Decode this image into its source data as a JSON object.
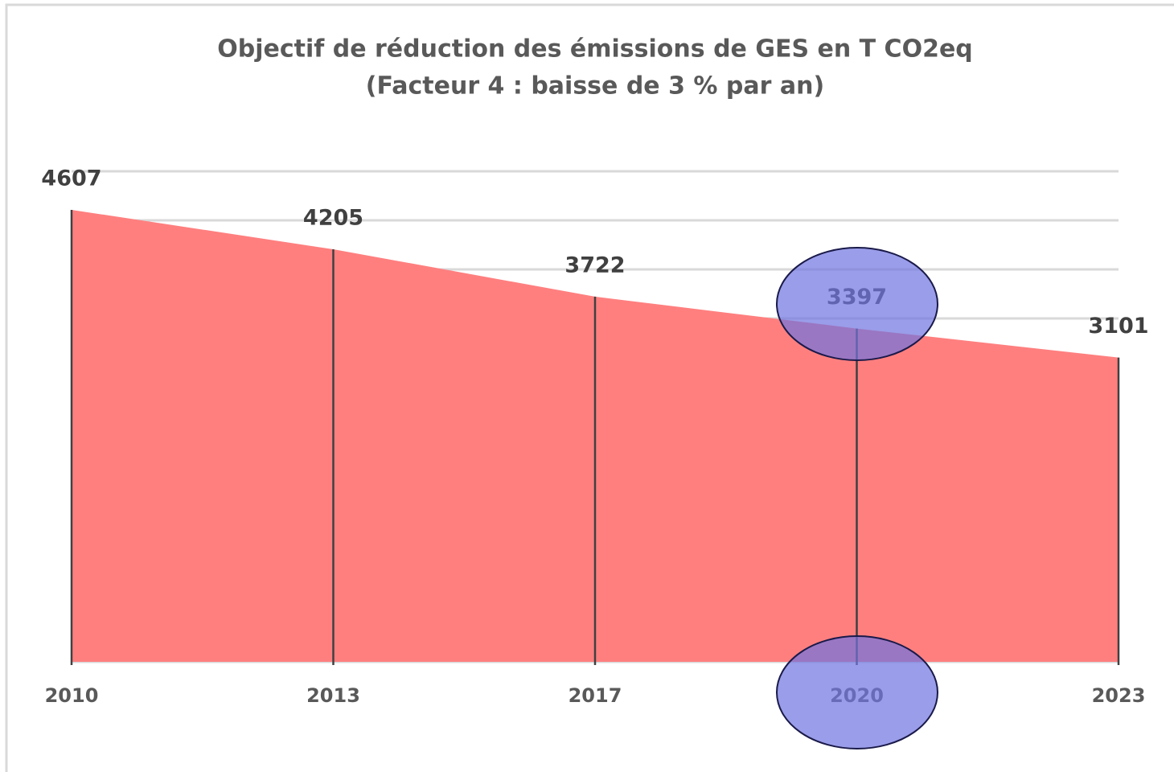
{
  "chart_data": {
    "type": "area",
    "title": "Objectif de réduction des émissions de GES en T CO2eq",
    "subtitle": "(Facteur 4 : baisse de 3 % par an)",
    "categories": [
      "2010",
      "2013",
      "2017",
      "2020",
      "2023"
    ],
    "values": [
      4607,
      4205,
      3722,
      3397,
      3101
    ],
    "color": "#ff7f7f",
    "ylim": [
      0,
      5000
    ],
    "yticks": [
      0,
      500,
      1000,
      1500,
      2000,
      2500,
      3000,
      3500,
      4000,
      4500,
      5000
    ],
    "grid": true,
    "ytick_labels": false
  }
}
